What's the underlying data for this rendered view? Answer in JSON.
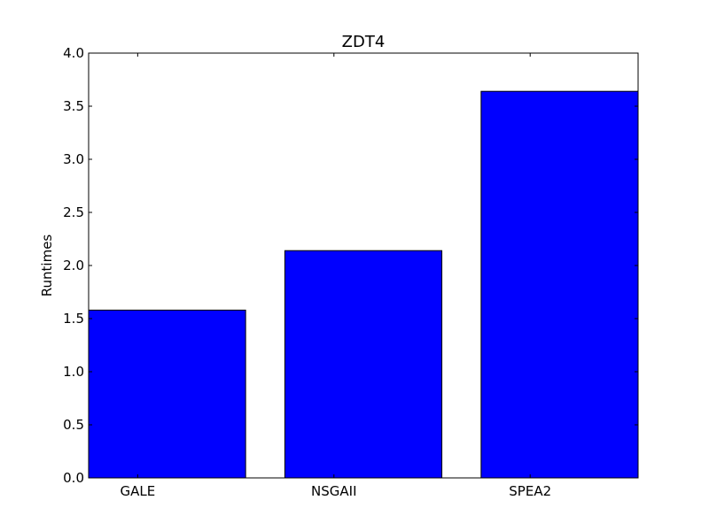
{
  "chart_data": {
    "type": "bar",
    "title": "ZDT4",
    "xlabel": "",
    "ylabel": "Runtimes",
    "categories": [
      "GALE",
      "NSGAII",
      "SPEA2"
    ],
    "values": [
      1.58,
      2.14,
      3.64
    ],
    "ylim": [
      0,
      4.0
    ],
    "yticks": [
      "0.0",
      "0.5",
      "1.0",
      "1.5",
      "2.0",
      "2.5",
      "3.0",
      "3.5",
      "4.0"
    ],
    "bar_color": "#0000ff",
    "grid": false
  }
}
